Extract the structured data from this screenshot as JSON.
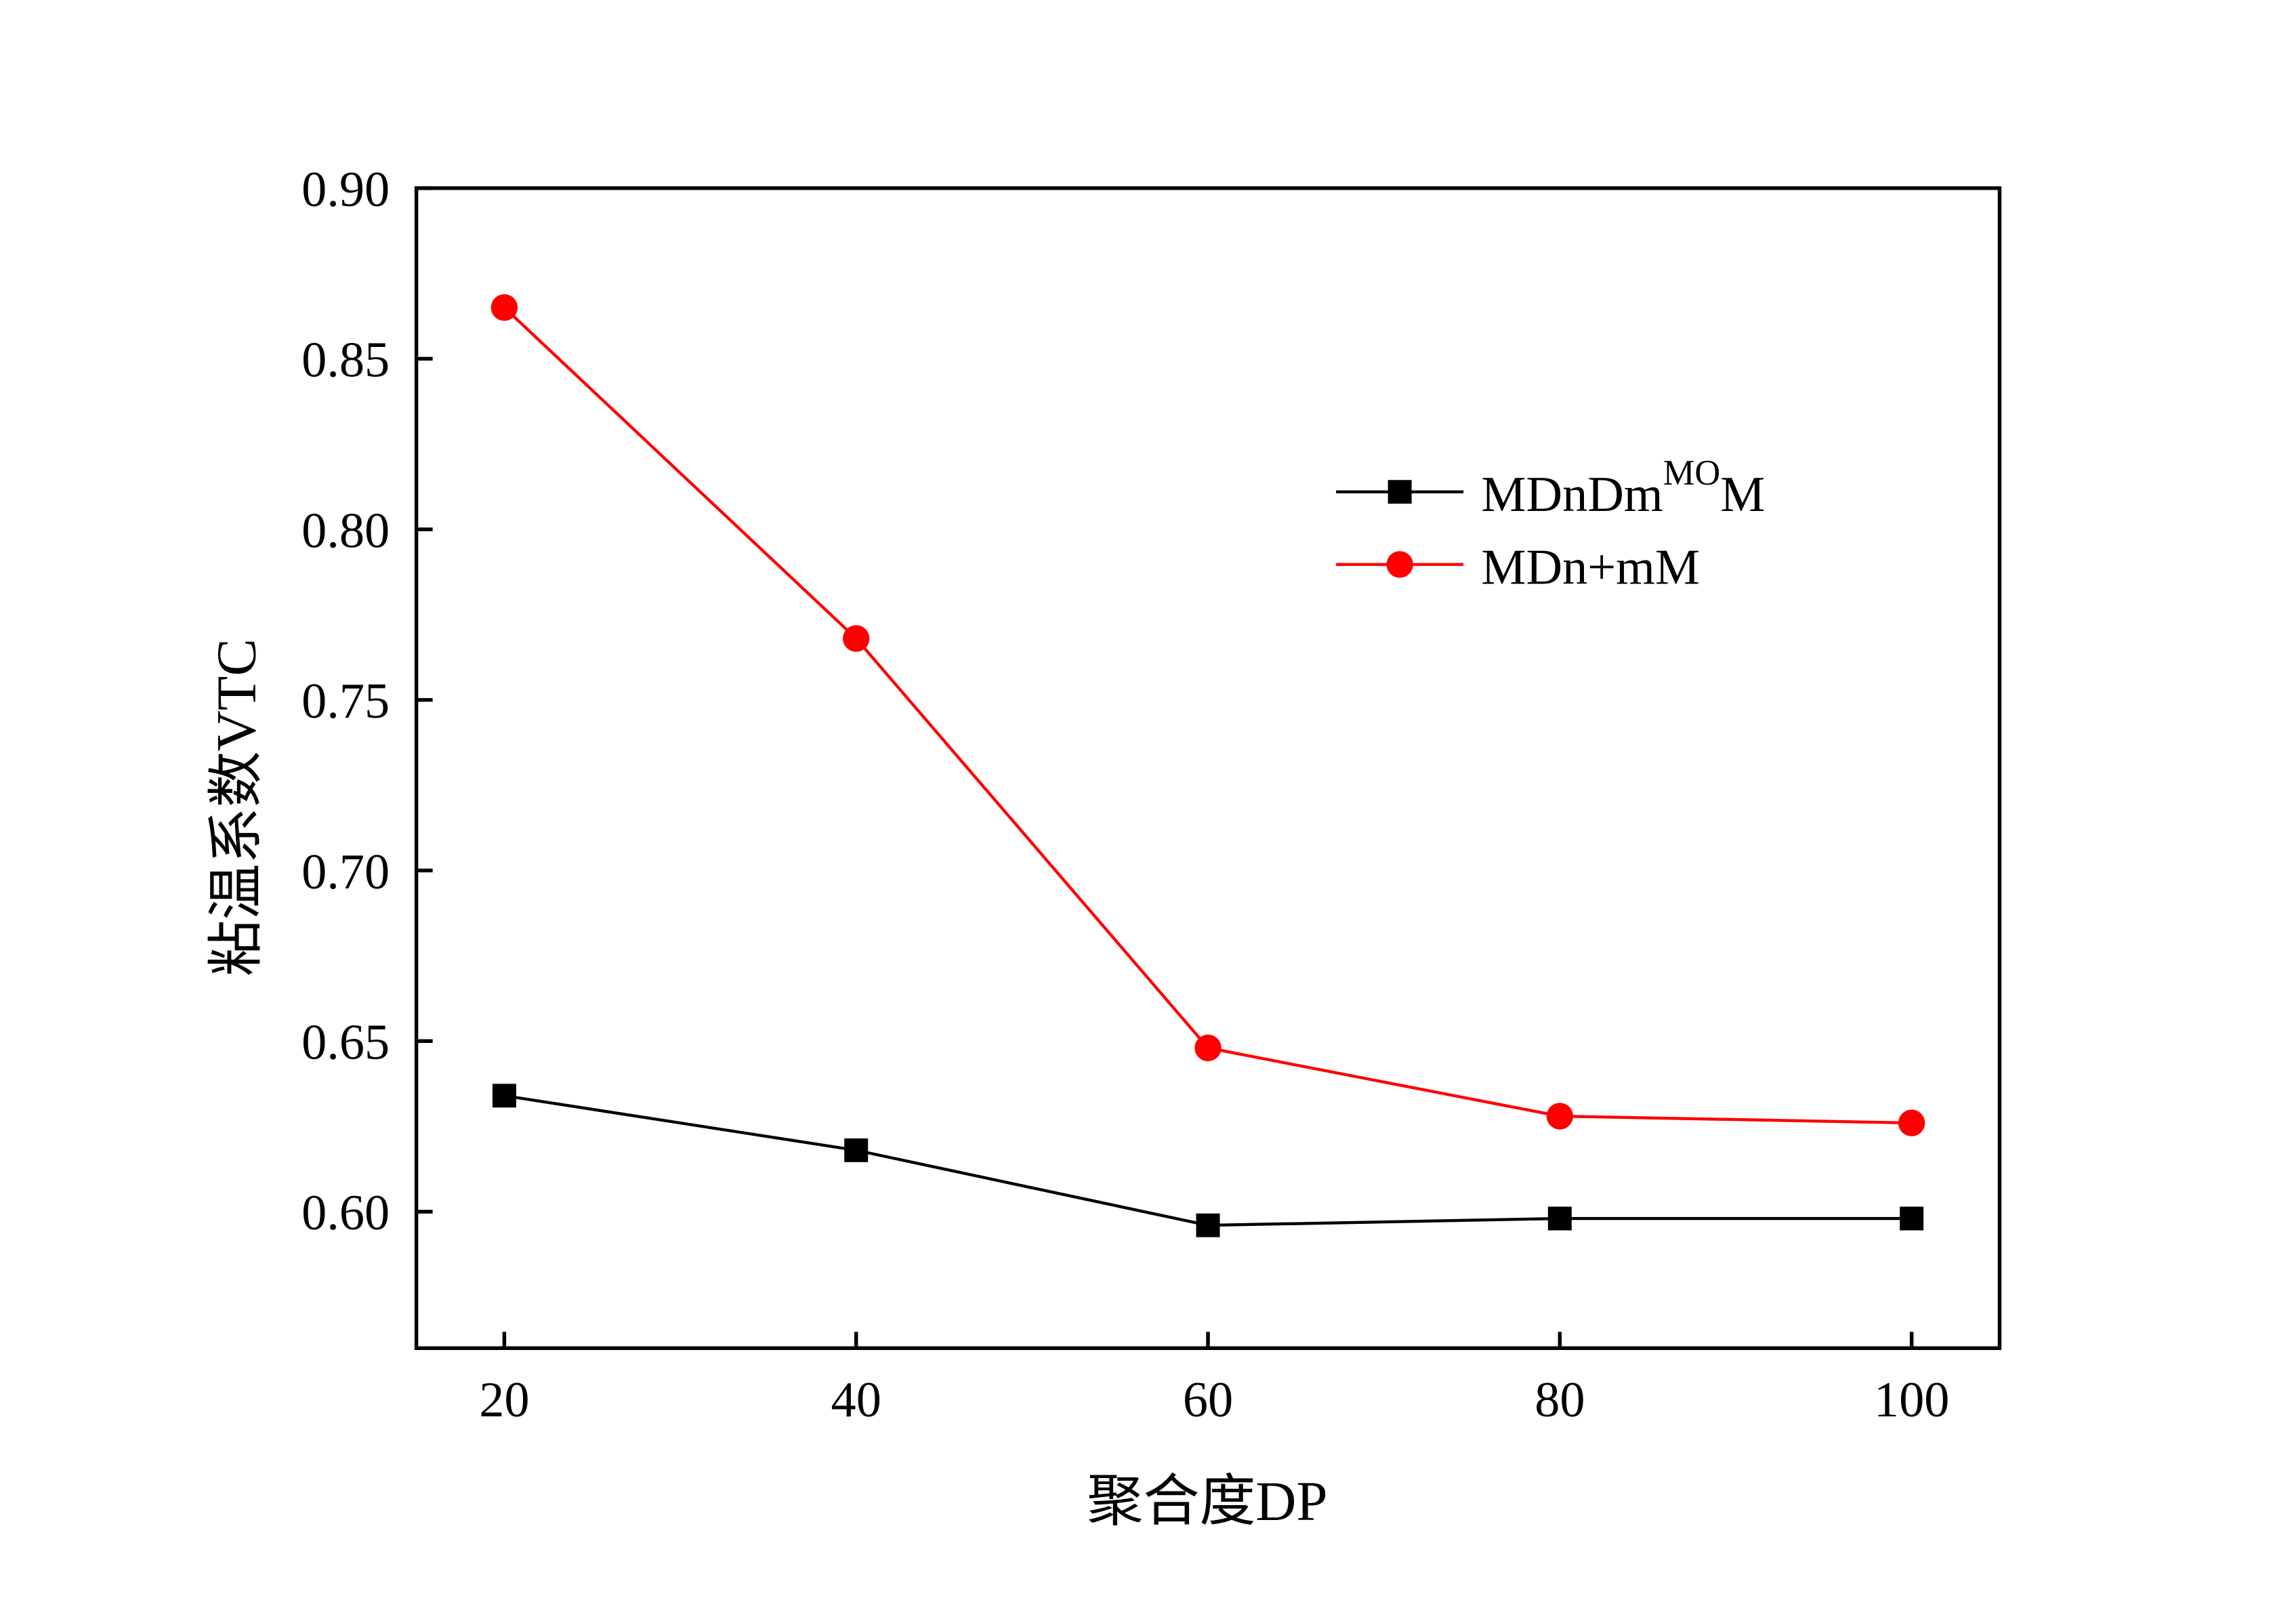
{
  "chart_data": {
    "type": "line",
    "title": "",
    "xlabel": "聚合度DP",
    "ylabel": "粘温系数VTC",
    "x": [
      20,
      40,
      60,
      80,
      100
    ],
    "xticks": [
      "20",
      "40",
      "60",
      "80",
      "100"
    ],
    "yticks": [
      "0.60",
      "0.65",
      "0.70",
      "0.75",
      "0.80",
      "0.85",
      "0.90"
    ],
    "xlim": [
      15,
      105
    ],
    "ylim": [
      0.56,
      0.9
    ],
    "grid": false,
    "legend_placement": "upper-right",
    "series": [
      {
        "name": "MDnDm",
        "name_sup": "MO",
        "name_suffix": "M",
        "marker": "square",
        "color": "#000000",
        "values": [
          0.634,
          0.618,
          0.596,
          0.598,
          0.598
        ]
      },
      {
        "name": "MDn+mM",
        "marker": "circle",
        "color": "#ff0000",
        "values": [
          0.865,
          0.768,
          0.648,
          0.628,
          0.626
        ]
      }
    ]
  }
}
